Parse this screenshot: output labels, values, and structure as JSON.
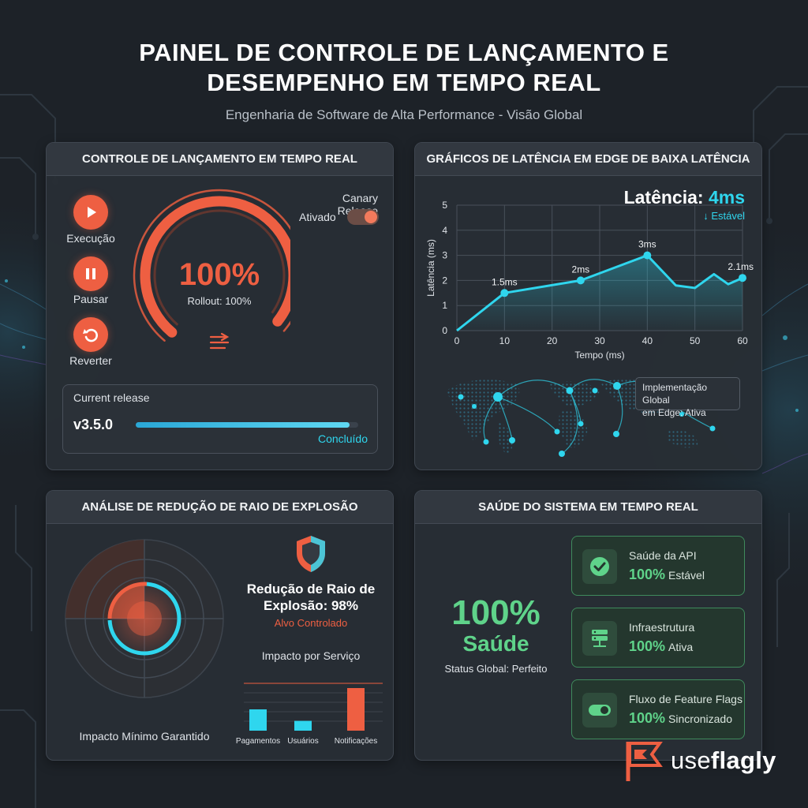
{
  "header": {
    "title_line1": "PAINEL DE CONTROLE DE LANÇAMENTO E",
    "title_line2": "DESEMPENHO EM TEMPO REAL",
    "subtitle": "Engenharia de Software de Alta Performance - Visão Global"
  },
  "release_panel": {
    "title": "CONTROLE DE LANÇAMENTO EM TEMPO REAL",
    "buttons": [
      {
        "label": "Execução",
        "icon": "play-icon"
      },
      {
        "label": "Pausar",
        "icon": "pause-icon"
      },
      {
        "label": "Reverter",
        "icon": "undo-icon"
      }
    ],
    "gauge": {
      "value_text": "100%",
      "caption": "Rollout: 100%",
      "percent": 100,
      "icon": "rollout-icon"
    },
    "canary_label": "Canary Release",
    "canary_status": "Ativado",
    "current_release_label": "Current release",
    "version": "v3.5.0",
    "progress": 100,
    "progress_status": "Concluído",
    "accent": "#ee5f42"
  },
  "latency_panel": {
    "title": "GRÁFICOS DE LATÊNCIA EM EDGE DE BAIXA LATÊNCIA",
    "latency_label": "Latência:",
    "latency_value": "4ms",
    "latency_status": "↓ Estável",
    "map_note_line1": "Implementação Global",
    "map_note_line2": "em Edge: Ativa",
    "accent": "#2fd6ee"
  },
  "chart_data": {
    "type": "line",
    "xlabel": "Tempo (ms)",
    "ylabel": "Latência (ms)",
    "xlim": [
      0,
      60
    ],
    "ylim": [
      0,
      5
    ],
    "x_ticks": [
      0,
      10,
      20,
      30,
      40,
      50,
      60
    ],
    "y_ticks": [
      0,
      1,
      2,
      3,
      4,
      5
    ],
    "grid": true,
    "points": [
      {
        "x": 0,
        "y": 0
      },
      {
        "x": 10,
        "y": 1.5,
        "label": "1.5ms"
      },
      {
        "x": 26,
        "y": 2,
        "label": "2ms"
      },
      {
        "x": 40,
        "y": 3,
        "label": "3ms"
      },
      {
        "x": 46,
        "y": 1.8
      },
      {
        "x": 50,
        "y": 1.7
      },
      {
        "x": 54,
        "y": 2.25
      },
      {
        "x": 57,
        "y": 1.85
      },
      {
        "x": 60,
        "y": 2.1,
        "label": "2.1ms"
      }
    ]
  },
  "blast_panel": {
    "title": "ANÁLISE DE REDUÇÃO DE RAIO DE EXPLOSÃO",
    "radar_caption": "Impacto Mínimo Garantido",
    "reduction_line1": "Redução de Raio de",
    "reduction_line2": "Explosão: 98%",
    "target_status": "Alvo Controlado",
    "impact_title": "Impacto por Serviço",
    "shield_icon": "shield-icon",
    "impact_bars": [
      {
        "name": "Pagamentos",
        "value": 26,
        "color": "#2fd6ee"
      },
      {
        "name": "Usuários",
        "value": 12,
        "color": "#2fd6ee"
      },
      {
        "name": "Notificações",
        "value": 52,
        "color": "#ee5f42"
      }
    ]
  },
  "health_panel": {
    "title": "SAÚDE DO SISTEMA EM TEMPO REAL",
    "big_value": "100%",
    "big_label": "Saúde",
    "global_status": "Status Global: Perfeito",
    "accent": "#5fd38a",
    "cards": [
      {
        "name": "Saúde da API",
        "pct": "100%",
        "status": "Estável",
        "icon": "check-icon"
      },
      {
        "name": "Infraestrutura",
        "pct": "100%",
        "status": "Ativa",
        "icon": "server-icon"
      },
      {
        "name": "Fluxo de Feature Flags",
        "pct": "100%",
        "status": "Sincronizado",
        "icon": "toggle-icon"
      }
    ]
  },
  "brand": {
    "prefix": "use",
    "bold": "flagly",
    "logo_icon": "flag-logo-icon"
  }
}
